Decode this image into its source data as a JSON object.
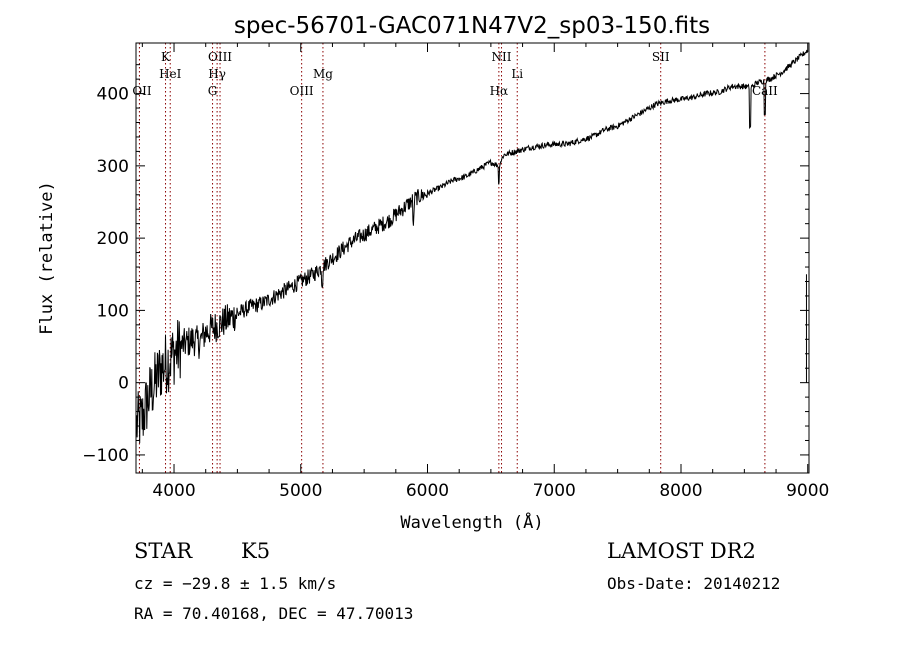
{
  "chart_data": {
    "type": "line",
    "title": "spec-56701-GAC071N47V2_sp03-150.fits",
    "xlabel": "Wavelength (Å)",
    "ylabel": "Flux (relative)",
    "xlim": [
      3700,
      9010
    ],
    "ylim": [
      -125,
      470
    ],
    "x_ticks": [
      4000,
      5000,
      6000,
      7000,
      8000,
      9000
    ],
    "y_ticks": [
      -100,
      0,
      100,
      200,
      300,
      400
    ],
    "x_tick_labels": [
      "4000",
      "5000",
      "6000",
      "7000",
      "8000",
      "9000"
    ],
    "y_tick_labels": [
      "−100",
      "0",
      "100",
      "200",
      "300",
      "400"
    ],
    "grid": false,
    "series": [
      {
        "x": [
          3700,
          3750,
          3800,
          3850,
          3900,
          3950,
          4000,
          4050,
          4100,
          4150,
          4200,
          4250,
          4300,
          4350,
          4400,
          4450,
          4500,
          4600,
          4700,
          4800,
          4900,
          5000,
          5100,
          5200,
          5300,
          5400,
          5500,
          5600,
          5700,
          5800,
          5900,
          6000,
          6100,
          6200,
          6300,
          6400,
          6500,
          6563,
          6600,
          6700,
          6800,
          6900,
          7000,
          7100,
          7200,
          7300,
          7400,
          7500,
          7600,
          7700,
          7800,
          7900,
          8000,
          8100,
          8200,
          8300,
          8400,
          8500,
          8550,
          8600,
          8662,
          8700,
          8800,
          8900,
          9000
        ],
        "y": [
          -60,
          -50,
          -20,
          0,
          20,
          30,
          40,
          50,
          55,
          60,
          55,
          70,
          75,
          80,
          85,
          90,
          95,
          105,
          110,
          120,
          130,
          140,
          150,
          165,
          180,
          195,
          205,
          215,
          225,
          240,
          255,
          262,
          270,
          280,
          285,
          295,
          305,
          300,
          315,
          320,
          325,
          328,
          330,
          330,
          335,
          340,
          350,
          355,
          365,
          375,
          385,
          390,
          392,
          395,
          400,
          402,
          410,
          410,
          408,
          415,
          418,
          420,
          430,
          445,
          460
        ]
      }
    ],
    "spectral_lines": [
      {
        "label": "OII",
        "x": 3727,
        "row": 3
      },
      {
        "label": "K",
        "x": 3933,
        "row": 1
      },
      {
        "label": "HeI",
        "x": 3970,
        "row": 2
      },
      {
        "label": "OIII",
        "x": 4363,
        "row": 1
      },
      {
        "label": "Hγ",
        "x": 4340,
        "row": 2
      },
      {
        "label": "G",
        "x": 4304,
        "row": 3
      },
      {
        "label": "OIII",
        "x": 5007,
        "row": 3
      },
      {
        "label": "Mg",
        "x": 5175,
        "row": 2
      },
      {
        "label": "NII",
        "x": 6584,
        "row": 1
      },
      {
        "label": "Hα",
        "x": 6563,
        "row": 3
      },
      {
        "label": "Li",
        "x": 6708,
        "row": 2
      },
      {
        "label": "SII",
        "x": 7840,
        "row": 1
      },
      {
        "label": "CaII",
        "x": 8662,
        "row": 3
      }
    ]
  },
  "info": {
    "object_class": "STAR",
    "subclass": "K5",
    "survey": "LAMOST DR2",
    "cz": "cz = −29.8 ± 1.5 km/s",
    "obs_date": "Obs-Date: 20140212",
    "coords": "RA =  70.40168, DEC =  47.70013"
  },
  "colors": {
    "axis": "#000000",
    "spectrum": "#000000",
    "line_markers": "#8b0000"
  }
}
